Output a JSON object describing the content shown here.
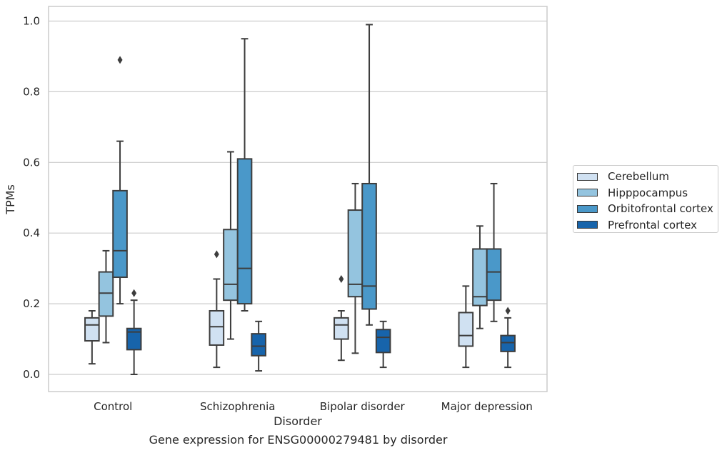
{
  "caption": "Gene expression for ENSG00000279481 by disorder",
  "chart_data": {
    "type": "box",
    "xlabel": "Disorder",
    "ylabel": "TPMs",
    "ylim": [
      -0.05,
      1.04
    ],
    "yticks": [
      0.0,
      0.2,
      0.4,
      0.6,
      0.8,
      1.0
    ],
    "ytick_labels": [
      "0.0",
      "0.2",
      "0.4",
      "0.6",
      "0.8",
      "1.0"
    ],
    "grid": "horizontal",
    "legend_placement": "outside-right",
    "categories": [
      "Control",
      "Schizophrenia",
      "Bipolar disorder",
      "Major depression"
    ],
    "series": [
      {
        "name": "Cerebellum",
        "color": "#d0e1f2",
        "boxes": [
          {
            "whislo": 0.03,
            "q1": 0.095,
            "med": 0.14,
            "q3": 0.16,
            "whishi": 0.18,
            "fliers": []
          },
          {
            "whislo": 0.02,
            "q1": 0.083,
            "med": 0.135,
            "q3": 0.18,
            "whishi": 0.27,
            "fliers": [
              0.34
            ]
          },
          {
            "whislo": 0.04,
            "q1": 0.1,
            "med": 0.14,
            "q3": 0.16,
            "whishi": 0.18,
            "fliers": [
              0.27
            ]
          },
          {
            "whislo": 0.02,
            "q1": 0.08,
            "med": 0.11,
            "q3": 0.175,
            "whishi": 0.25,
            "fliers": []
          }
        ]
      },
      {
        "name": "Hipppocampus",
        "color": "#94c4df",
        "boxes": [
          {
            "whislo": 0.09,
            "q1": 0.165,
            "med": 0.23,
            "q3": 0.29,
            "whishi": 0.35,
            "fliers": []
          },
          {
            "whislo": 0.1,
            "q1": 0.21,
            "med": 0.255,
            "q3": 0.41,
            "whishi": 0.63,
            "fliers": []
          },
          {
            "whislo": 0.06,
            "q1": 0.22,
            "med": 0.255,
            "q3": 0.465,
            "whishi": 0.54,
            "fliers": []
          },
          {
            "whislo": 0.13,
            "q1": 0.195,
            "med": 0.22,
            "q3": 0.355,
            "whishi": 0.42,
            "fliers": []
          }
        ]
      },
      {
        "name": "Orbitofrontal cortex",
        "color": "#4a98c9",
        "boxes": [
          {
            "whislo": 0.2,
            "q1": 0.275,
            "med": 0.35,
            "q3": 0.52,
            "whishi": 0.66,
            "fliers": [
              0.89
            ]
          },
          {
            "whislo": 0.18,
            "q1": 0.2,
            "med": 0.3,
            "q3": 0.61,
            "whishi": 0.95,
            "fliers": []
          },
          {
            "whislo": 0.14,
            "q1": 0.185,
            "med": 0.25,
            "q3": 0.54,
            "whishi": 0.99,
            "fliers": []
          },
          {
            "whislo": 0.15,
            "q1": 0.21,
            "med": 0.29,
            "q3": 0.355,
            "whishi": 0.54,
            "fliers": []
          }
        ]
      },
      {
        "name": "Prefrontal cortex",
        "color": "#1764ab",
        "boxes": [
          {
            "whislo": 0.0,
            "q1": 0.07,
            "med": 0.12,
            "q3": 0.13,
            "whishi": 0.21,
            "fliers": [
              0.23
            ]
          },
          {
            "whislo": 0.01,
            "q1": 0.053,
            "med": 0.08,
            "q3": 0.115,
            "whishi": 0.15,
            "fliers": []
          },
          {
            "whislo": 0.02,
            "q1": 0.062,
            "med": 0.105,
            "q3": 0.127,
            "whishi": 0.15,
            "fliers": []
          },
          {
            "whislo": 0.02,
            "q1": 0.065,
            "med": 0.09,
            "q3": 0.11,
            "whishi": 0.16,
            "fliers": [
              0.18
            ]
          }
        ]
      }
    ]
  }
}
